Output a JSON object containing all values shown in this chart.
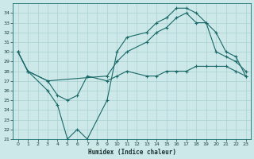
{
  "xlabel": "Humidex (Indice chaleur)",
  "bg_color": "#cce8e8",
  "line_color": "#1a6868",
  "grid_color": "#aad0d0",
  "xlim": [
    -0.5,
    23.5
  ],
  "ylim": [
    21,
    35
  ],
  "yticks": [
    21,
    22,
    23,
    24,
    25,
    26,
    27,
    28,
    29,
    30,
    31,
    32,
    33,
    34
  ],
  "xticks": [
    0,
    1,
    2,
    3,
    4,
    5,
    6,
    7,
    8,
    9,
    10,
    11,
    12,
    13,
    14,
    15,
    16,
    17,
    18,
    19,
    20,
    21,
    22,
    23
  ],
  "line1_x": [
    0,
    1,
    3,
    4,
    5,
    6,
    7,
    9,
    10,
    11,
    13,
    14,
    15,
    16,
    17,
    18,
    19,
    20,
    21,
    22,
    23
  ],
  "line1_y": [
    30,
    28,
    26,
    24.5,
    21,
    22,
    21,
    25,
    30,
    31.5,
    32,
    33,
    33.5,
    34.5,
    34.5,
    34,
    33,
    30,
    29.5,
    29,
    28
  ],
  "line2_x": [
    0,
    1,
    3,
    9,
    10,
    11,
    13,
    14,
    15,
    16,
    17,
    18,
    19,
    20,
    21,
    22,
    23
  ],
  "line2_y": [
    30,
    28,
    27,
    27.5,
    29,
    30,
    31,
    32,
    32.5,
    33.5,
    34,
    33,
    33,
    32,
    30,
    29.5,
    27.5
  ],
  "line3_x": [
    0,
    1,
    3,
    4,
    5,
    6,
    7,
    9,
    10,
    11,
    13,
    14,
    15,
    16,
    17,
    18,
    19,
    20,
    21,
    22,
    23
  ],
  "line3_y": [
    30,
    28,
    27,
    25.5,
    25,
    25.5,
    27.5,
    27,
    27.5,
    28,
    27.5,
    27.5,
    28,
    28,
    28,
    28.5,
    28.5,
    28.5,
    28.5,
    28,
    27.5
  ]
}
